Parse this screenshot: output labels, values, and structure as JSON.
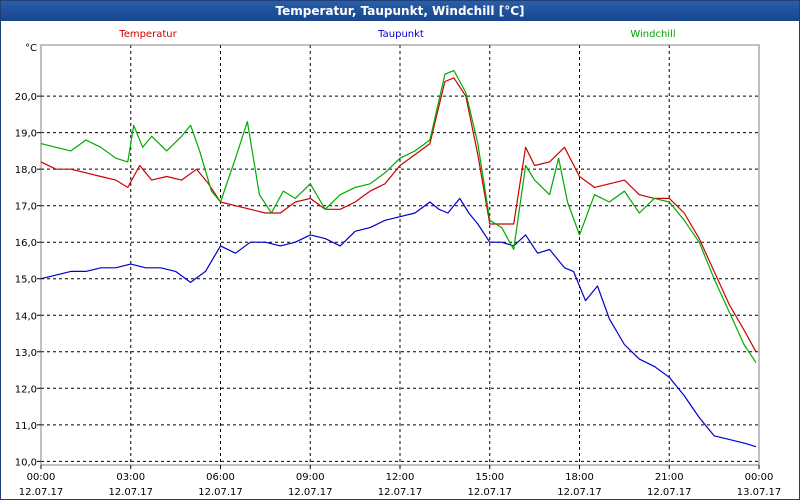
{
  "window_title": "Temperatur, Taupunkt, Windchill [°C]",
  "chart_data": {
    "type": "line",
    "title": "Temperatur, Taupunkt, Windchill [°C]",
    "ylabel": "°C",
    "xlabel": "",
    "ylim": [
      9.9,
      21.4
    ],
    "xlim": [
      0,
      24
    ],
    "grid": true,
    "y_ticks": [
      "10,0",
      "11,0",
      "12,0",
      "13,0",
      "14,0",
      "15,0",
      "16,0",
      "17,0",
      "18,0",
      "19,0",
      "20,0"
    ],
    "x_ticks": [
      {
        "time": "00:00",
        "date": "12.07.17"
      },
      {
        "time": "03:00",
        "date": "12.07.17"
      },
      {
        "time": "06:00",
        "date": "12.07.17"
      },
      {
        "time": "09:00",
        "date": "12.07.17"
      },
      {
        "time": "12:00",
        "date": "12.07.17"
      },
      {
        "time": "15:00",
        "date": "12.07.17"
      },
      {
        "time": "18:00",
        "date": "12.07.17"
      },
      {
        "time": "21:00",
        "date": "12.07.17"
      },
      {
        "time": "00:00",
        "date": "13.07.17"
      }
    ],
    "series": [
      {
        "name": "Temperatur",
        "color": "#cc0000",
        "x": [
          0,
          0.5,
          1,
          1.5,
          2,
          2.5,
          2.9,
          3.3,
          3.7,
          4.2,
          4.7,
          5.2,
          5.6,
          6,
          6.5,
          7,
          7.5,
          8,
          8.5,
          9,
          9.5,
          10,
          10.5,
          11,
          11.5,
          12,
          12.5,
          13,
          13.5,
          13.8,
          14.2,
          14.6,
          15,
          15.4,
          15.8,
          16.2,
          16.5,
          17,
          17.5,
          18,
          18.5,
          19,
          19.5,
          20,
          20.5,
          21,
          21.5,
          22,
          22.5,
          23,
          23.5,
          23.9
        ],
        "y": [
          18.2,
          18,
          18,
          17.9,
          17.8,
          17.7,
          17.5,
          18.1,
          17.7,
          17.8,
          17.7,
          18,
          17.6,
          17.1,
          17,
          16.9,
          16.8,
          16.8,
          17.1,
          17.2,
          16.9,
          16.9,
          17.1,
          17.4,
          17.6,
          18.1,
          18.4,
          18.7,
          20.4,
          20.5,
          20,
          18.4,
          16.5,
          16.5,
          16.5,
          18.6,
          18.1,
          18.2,
          18.6,
          17.8,
          17.5,
          17.6,
          17.7,
          17.3,
          17.2,
          17.2,
          16.8,
          16.1,
          15.2,
          14.3,
          13.6,
          13
        ]
      },
      {
        "name": "Taupunkt",
        "color": "#0000cc",
        "x": [
          0,
          0.5,
          1,
          1.5,
          2,
          2.5,
          3,
          3.5,
          4,
          4.5,
          5,
          5.5,
          6,
          6.5,
          7,
          7.5,
          8,
          8.5,
          9,
          9.5,
          10,
          10.5,
          11,
          11.5,
          12,
          12.5,
          13,
          13.3,
          13.6,
          14,
          14.3,
          14.6,
          15,
          15.4,
          15.8,
          16.2,
          16.6,
          17,
          17.5,
          17.8,
          18.2,
          18.6,
          19,
          19.5,
          20,
          20.5,
          21,
          21.5,
          22,
          22.5,
          23,
          23.5,
          23.9
        ],
        "y": [
          15,
          15.1,
          15.2,
          15.2,
          15.3,
          15.3,
          15.4,
          15.3,
          15.3,
          15.2,
          14.9,
          15.2,
          15.9,
          15.7,
          16,
          16,
          15.9,
          16,
          16.2,
          16.1,
          15.9,
          16.3,
          16.4,
          16.6,
          16.7,
          16.8,
          17.1,
          16.9,
          16.8,
          17.2,
          16.8,
          16.5,
          16,
          16,
          15.9,
          16.2,
          15.7,
          15.8,
          15.3,
          15.2,
          14.4,
          14.8,
          13.9,
          13.2,
          12.8,
          12.6,
          12.3,
          11.8,
          11.2,
          10.7,
          10.6,
          10.5,
          10.4
        ]
      },
      {
        "name": "Windchill",
        "color": "#00aa00",
        "x": [
          0,
          0.5,
          1,
          1.5,
          2,
          2.5,
          2.9,
          3.1,
          3.4,
          3.7,
          4.2,
          4.7,
          5,
          5.3,
          5.7,
          6,
          6.5,
          6.9,
          7.3,
          7.7,
          8.1,
          8.5,
          9,
          9.5,
          10,
          10.5,
          11,
          11.5,
          12,
          12.5,
          13,
          13.5,
          13.8,
          14.2,
          14.6,
          15,
          15.4,
          15.8,
          16.2,
          16.5,
          17,
          17.3,
          17.6,
          18,
          18.5,
          19,
          19.5,
          20,
          20.5,
          21,
          21.5,
          22,
          22.5,
          23,
          23.5,
          23.9
        ],
        "y": [
          18.7,
          18.6,
          18.5,
          18.8,
          18.6,
          18.3,
          18.2,
          19.2,
          18.6,
          18.9,
          18.5,
          18.9,
          19.2,
          18.5,
          17.4,
          17.1,
          18.3,
          19.3,
          17.3,
          16.8,
          17.4,
          17.2,
          17.6,
          16.9,
          17.3,
          17.5,
          17.6,
          17.9,
          18.3,
          18.5,
          18.8,
          20.6,
          20.7,
          20.1,
          18.7,
          16.6,
          16.4,
          15.8,
          18.1,
          17.7,
          17.3,
          18.3,
          17.1,
          16.2,
          17.3,
          17.1,
          17.4,
          16.8,
          17.2,
          17.1,
          16.6,
          16,
          15,
          14.1,
          13.2,
          12.7
        ]
      }
    ]
  }
}
